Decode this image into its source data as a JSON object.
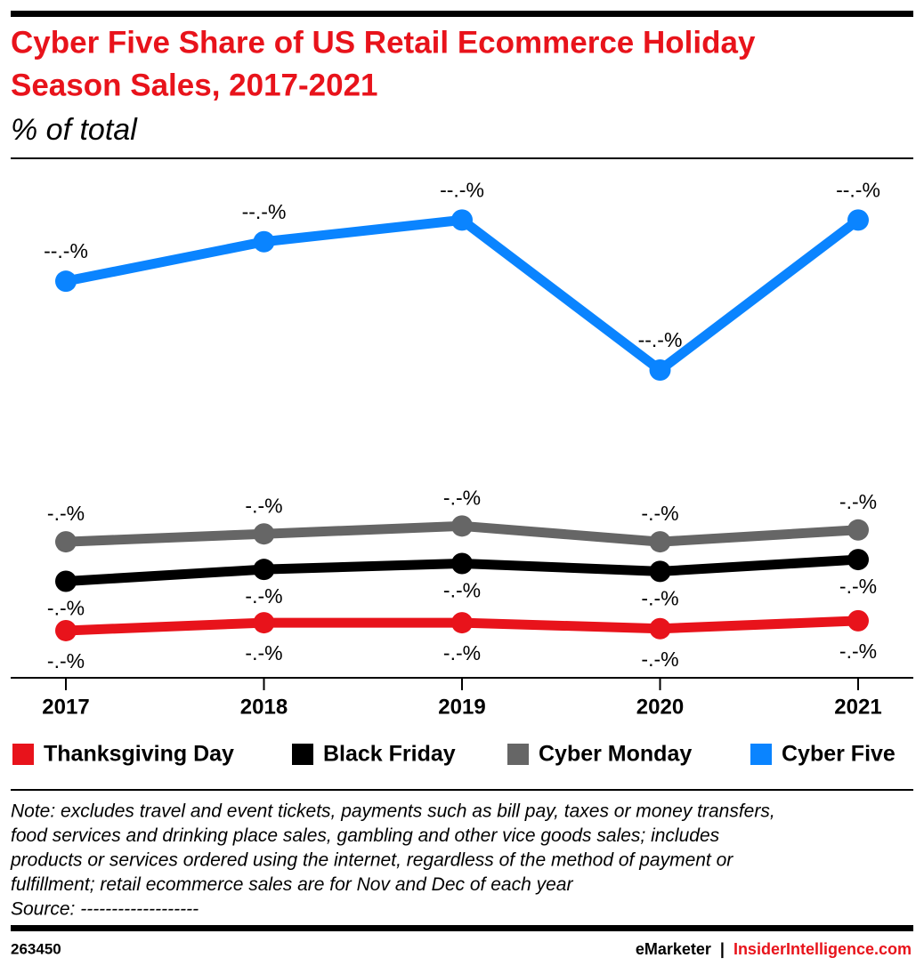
{
  "chart_data": {
    "type": "line",
    "title_lines": [
      "Cyber Five Share of US Retail Ecommerce Holiday",
      "Season Sales, 2017-2021"
    ],
    "subtitle": "% of total",
    "categories": [
      "2017",
      "2018",
      "2019",
      "2020",
      "2021"
    ],
    "ylim": [
      0,
      26
    ],
    "series": [
      {
        "name": "Thanksgiving Day",
        "color": "#e8131b",
        "values": [
          2.3,
          2.7,
          2.7,
          2.4,
          2.8
        ],
        "value_labels": [
          "-.-%",
          "-.-%",
          "-.-%",
          "-.-%",
          "-.-%"
        ]
      },
      {
        "name": "Black Friday",
        "color": "#000000",
        "values": [
          4.8,
          5.4,
          5.7,
          5.3,
          5.9
        ],
        "value_labels": [
          "-.-%",
          "-.-%",
          "-.-%",
          "-.-%",
          "-.-%"
        ]
      },
      {
        "name": "Cyber Monday",
        "color": "#666666",
        "values": [
          6.8,
          7.2,
          7.6,
          6.8,
          7.4
        ],
        "value_labels": [
          "-.-%",
          "-.-%",
          "-.-%",
          "-.-%",
          "-.-%"
        ]
      },
      {
        "name": "Cyber Five",
        "color": "#0a84ff",
        "values": [
          20.0,
          22.0,
          23.1,
          15.5,
          23.1
        ],
        "value_labels": [
          "--.-%",
          "--.-%",
          "--.-%",
          "--.-%",
          "--.-%"
        ]
      }
    ],
    "note_lines": [
      "Note: excludes travel and event tickets, payments such as bill pay, taxes or money transfers,",
      "food services and drinking place sales, gambling and other vice goods sales; includes",
      "products or services ordered using the internet, regardless of the method of payment or",
      "fulfillment; retail ecommerce sales are for Nov and Dec of each year",
      "Source: -------------------"
    ],
    "chart_id": "263450",
    "footer_brand": "eMarketer",
    "footer_separator": "|",
    "footer_site": "InsiderIntelligence.com"
  }
}
